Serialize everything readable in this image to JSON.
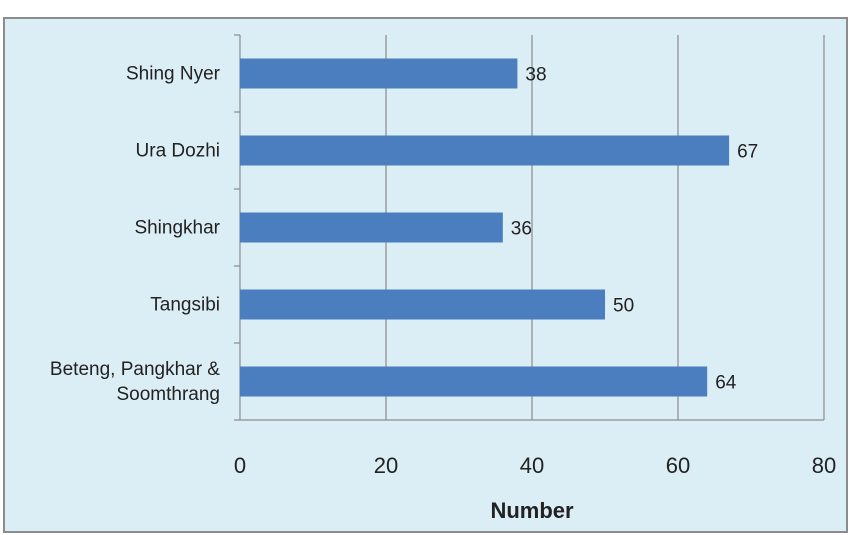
{
  "chart_data": {
    "type": "barh",
    "x_label": "Number",
    "categories": [
      "Shing Nyer",
      "Ura Dozhi",
      "Shingkhar",
      "Tangsibi",
      "Beteng, Pangkhar & Soomthrang"
    ],
    "values": [
      38,
      67,
      36,
      50,
      64
    ],
    "color": "#4a7ebf",
    "xlim": [
      0,
      80
    ],
    "xticks": [
      0,
      20,
      40,
      60,
      80
    ],
    "grid": true
  }
}
